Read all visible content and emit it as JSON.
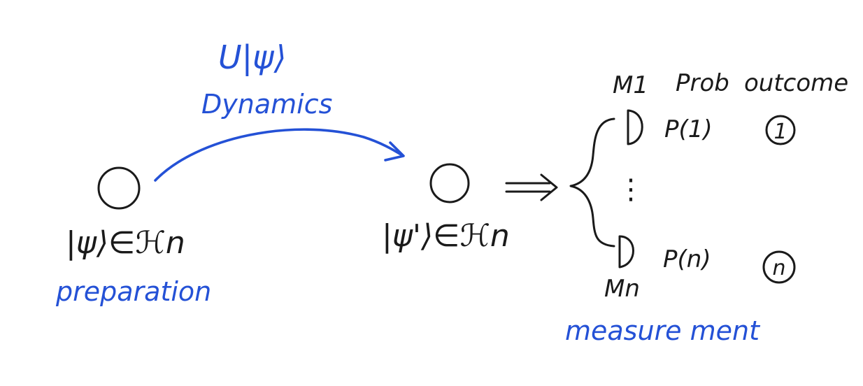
{
  "colors": {
    "ink": "#1a1a1a",
    "accent": "#2451d6"
  },
  "dynamics": {
    "operator": "U|ψ⟩",
    "label": "Dynamics"
  },
  "initial_state": {
    "label": "|ψ⟩∈ℋn",
    "caption": "preparation"
  },
  "evolved_state": {
    "label": "|ψ'⟩∈ℋn"
  },
  "measurement": {
    "header_operator": "M1",
    "header_prob": "Prob",
    "header_outcome": "outcome",
    "first_prob": "P(1)",
    "first_outcome": "1",
    "ellipsis": "⋮",
    "last_prob": "P(n)",
    "last_outcome": "n",
    "last_operator": "Mn",
    "caption": "measure ment"
  },
  "icons": {
    "state_circle": "circle-icon",
    "implies_arrow": "double-arrow-icon",
    "detector": "detector-icon"
  }
}
